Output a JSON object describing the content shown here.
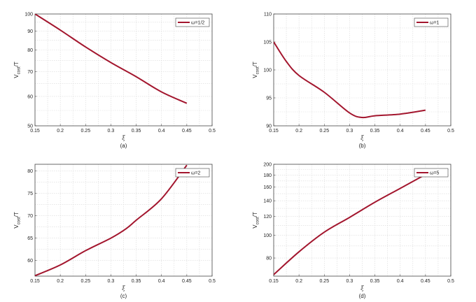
{
  "chart_data": [
    {
      "type": "line",
      "panel": "(a)",
      "xlabel": "ξ",
      "ylabel": "V_cost/T",
      "xlim": [
        0.15,
        0.5
      ],
      "ylim": [
        50,
        100
      ],
      "xticks": [
        "0.15",
        "0.2",
        "0.25",
        "0.3",
        "0.35",
        "0.4",
        "0.45",
        "0.5"
      ],
      "yticks": [
        "50",
        "60",
        "70",
        "80",
        "90",
        "100"
      ],
      "ylog": true,
      "legend_position": "top-right",
      "grid": true,
      "color": "#a3162e",
      "series": [
        {
          "name": "ω=1/2",
          "x": [
            0.15,
            0.2,
            0.25,
            0.3,
            0.35,
            0.4,
            0.45
          ],
          "y": [
            100,
            90.5,
            81.5,
            74,
            67.8,
            61.7,
            57.5
          ]
        }
      ]
    },
    {
      "type": "line",
      "panel": "(b)",
      "xlabel": "ξ",
      "ylabel": "V_cost/T",
      "xlim": [
        0.15,
        0.5
      ],
      "ylim": [
        90,
        110
      ],
      "xticks": [
        "0.15",
        "0.2",
        "0.25",
        "0.3",
        "0.35",
        "0.4",
        "0.45",
        "0.5"
      ],
      "yticks": [
        "90",
        "95",
        "100",
        "105",
        "110"
      ],
      "ylog": false,
      "legend_position": "top-right",
      "grid": true,
      "color": "#a3162e",
      "series": [
        {
          "name": "ω=1",
          "x": [
            0.15,
            0.175,
            0.2,
            0.25,
            0.3,
            0.325,
            0.35,
            0.4,
            0.45
          ],
          "y": [
            105,
            101.5,
            99,
            96,
            92.3,
            91.5,
            91.8,
            92.1,
            92.8
          ]
        }
      ]
    },
    {
      "type": "line",
      "panel": "(c)",
      "xlabel": "ξ",
      "ylabel": "V_cost/T",
      "xlim": [
        0.15,
        0.5
      ],
      "ylim": [
        56.5,
        81.5
      ],
      "xticks": [
        "0.15",
        "0.2",
        "0.25",
        "0.3",
        "0.35",
        "0.4",
        "0.45",
        "0.5"
      ],
      "yticks": [
        "60",
        "65",
        "70",
        "75",
        "80"
      ],
      "ylog": false,
      "legend_position": "top-right",
      "grid": true,
      "color": "#a3162e",
      "series": [
        {
          "name": "ω=2",
          "x": [
            0.15,
            0.2,
            0.25,
            0.3,
            0.33,
            0.35,
            0.4,
            0.45
          ],
          "y": [
            56.6,
            59,
            62.2,
            65,
            67.1,
            69,
            73.8,
            81.3
          ]
        }
      ]
    },
    {
      "type": "line",
      "panel": "(d)",
      "xlabel": "ξ",
      "ylabel": "V_cost/T",
      "xlim": [
        0.15,
        0.5
      ],
      "ylim": [
        67,
        200
      ],
      "xticks": [
        "0.15",
        "0.2",
        "0.25",
        "0.3",
        "0.35",
        "0.4",
        "0.45",
        "0.5"
      ],
      "yticks": [
        "80",
        "100",
        "120",
        "140",
        "160",
        "180",
        "200"
      ],
      "ylog": true,
      "legend_position": "top-right",
      "grid": true,
      "color": "#a3162e",
      "series": [
        {
          "name": "ω=5",
          "x": [
            0.15,
            0.2,
            0.25,
            0.3,
            0.35,
            0.4,
            0.45
          ],
          "y": [
            68,
            85,
            103,
            119,
            138,
            158,
            181
          ]
        }
      ]
    }
  ]
}
